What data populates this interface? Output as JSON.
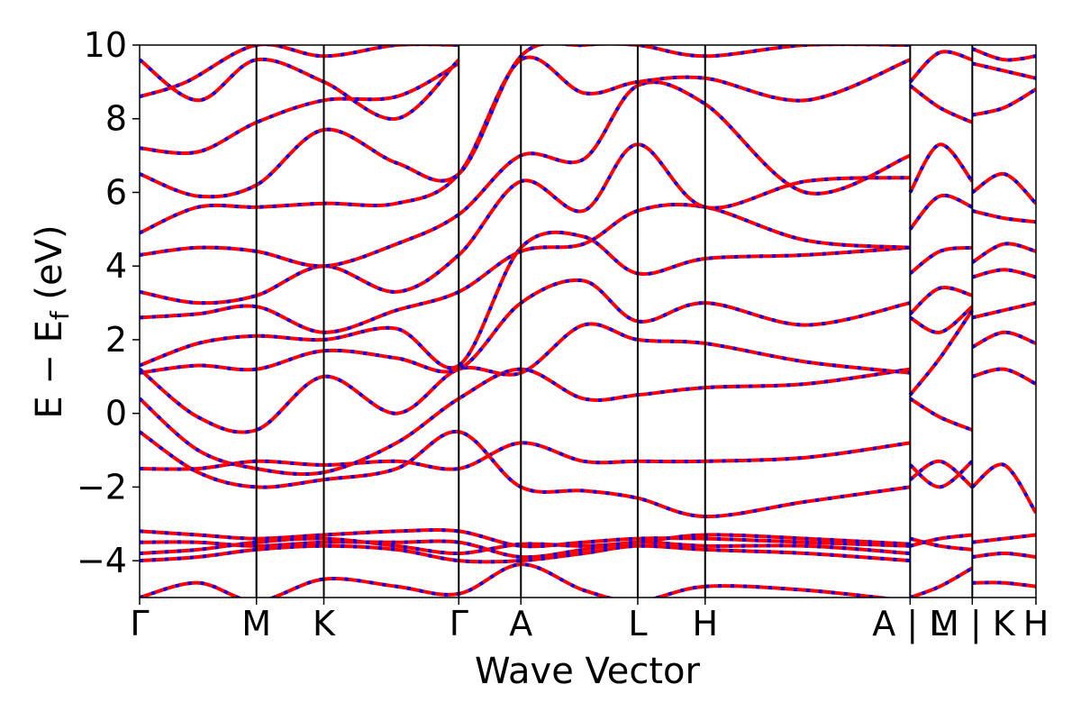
{
  "chart_data": {
    "type": "line",
    "title": "",
    "xlabel": "Wave Vector",
    "ylabel_main": "E − E",
    "ylabel_sub": "f",
    "ylabel_unit": " (eV)",
    "ylim": [
      -5,
      10
    ],
    "yticks": [
      -4,
      -2,
      0,
      2,
      4,
      6,
      8,
      10
    ],
    "ytick_labels": [
      "−4",
      "−2",
      "0",
      "2",
      "4",
      "6",
      "8",
      "10"
    ],
    "kpoint_labels": [
      "Γ",
      "M",
      "K",
      "Γ",
      "A",
      "L",
      "H",
      "A | L",
      "M | K",
      "H"
    ],
    "kpoint_positions": [
      0,
      1.0,
      1.577,
      2.732,
      3.264,
      4.264,
      4.841,
      6.596,
      7.128,
      7.673
    ],
    "grid": false,
    "legend": "none",
    "series_colors": {
      "solid": "#ff0000",
      "dashed": "#0000ff"
    },
    "bands": [
      {
        "x": [
          0,
          0.5,
          1.0,
          1.577,
          2.2,
          2.732,
          3.264,
          3.8,
          4.264,
          4.841,
          5.7,
          6.596
        ],
        "y": [
          -4.0,
          -3.9,
          -3.7,
          -3.6,
          -3.7,
          -4.0,
          -4.0,
          -3.8,
          -3.6,
          -3.7,
          -3.8,
          -4.0
        ]
      },
      {
        "x": [
          0,
          0.5,
          1.0,
          1.577,
          2.2,
          2.732,
          3.264,
          3.8,
          4.264,
          4.841,
          5.7,
          6.596
        ],
        "y": [
          -3.2,
          -3.3,
          -3.4,
          -3.3,
          -3.2,
          -3.2,
          -3.6,
          -3.5,
          -3.4,
          -3.4,
          -3.5,
          -3.6
        ]
      },
      {
        "x": [
          0,
          0.5,
          1.0,
          1.577,
          2.2,
          2.732,
          3.264,
          3.8,
          4.264,
          4.841,
          5.7,
          6.596
        ],
        "y": [
          -3.5,
          -3.5,
          -3.6,
          -3.5,
          -3.5,
          -3.5,
          -3.9,
          -3.7,
          -3.5,
          -3.6,
          -3.6,
          -3.8
        ]
      },
      {
        "x": [
          0,
          0.5,
          1.0,
          1.577,
          2.2,
          2.732,
          3.264,
          3.8,
          4.264,
          4.841,
          5.7,
          6.596
        ],
        "y": [
          -3.8,
          -3.7,
          -3.5,
          -3.4,
          -3.6,
          -3.8,
          -3.55,
          -3.6,
          -3.5,
          -3.3,
          -3.4,
          -3.55
        ]
      },
      {
        "x": [
          0,
          0.5,
          1.0,
          1.577,
          2.2,
          2.732,
          3.264,
          3.8,
          4.264,
          4.841,
          5.7,
          6.596
        ],
        "y": [
          -1.5,
          -1.5,
          -1.3,
          -1.4,
          -1.3,
          -1.5,
          -0.8,
          -1.3,
          -1.3,
          -1.3,
          -1.2,
          -0.8
        ]
      },
      {
        "x": [
          0,
          0.5,
          1.0,
          1.577,
          2.2,
          2.732,
          3.264,
          3.8,
          4.264,
          4.841,
          5.7,
          6.596
        ],
        "y": [
          -0.5,
          -1.6,
          -2.0,
          -1.8,
          -1.5,
          -0.5,
          -2.0,
          -2.1,
          -2.3,
          -2.8,
          -2.4,
          -2.0
        ]
      },
      {
        "x": [
          0,
          0.5,
          1.0,
          1.577,
          2.2,
          2.732,
          3.264,
          3.8,
          4.264,
          4.841,
          5.7,
          6.596
        ],
        "y": [
          0.4,
          -1.0,
          -1.5,
          -1.6,
          -0.8,
          0.4,
          1.2,
          0.4,
          0.5,
          0.7,
          0.8,
          1.2
        ]
      },
      {
        "x": [
          0,
          0.5,
          1.0,
          1.577,
          2.2,
          2.732,
          3.264,
          3.8,
          4.264,
          4.841,
          5.7,
          6.596
        ],
        "y": [
          1.2,
          -0.1,
          -0.45,
          1.0,
          0.0,
          1.2,
          1.1,
          2.4,
          2.0,
          1.9,
          1.4,
          1.1
        ]
      },
      {
        "x": [
          0,
          0.5,
          1.0,
          1.577,
          2.2,
          2.732,
          3.264,
          3.8,
          4.264,
          4.841,
          5.7,
          6.596
        ],
        "y": [
          1.1,
          1.3,
          1.2,
          1.7,
          1.5,
          1.2,
          3.0,
          3.6,
          2.5,
          3.0,
          2.4,
          3.0
        ]
      },
      {
        "x": [
          0,
          0.5,
          1.0,
          1.577,
          2.2,
          2.732,
          3.264,
          3.8,
          4.264,
          4.841,
          5.7,
          6.596
        ],
        "y": [
          1.3,
          1.9,
          2.1,
          2.0,
          2.3,
          1.3,
          4.5,
          4.8,
          3.8,
          4.2,
          4.3,
          4.5
        ]
      },
      {
        "x": [
          0,
          0.5,
          1.0,
          1.577,
          2.2,
          2.732,
          3.264,
          3.8,
          4.264,
          4.841,
          5.7,
          6.596
        ],
        "y": [
          2.6,
          2.7,
          2.9,
          2.2,
          2.8,
          3.3,
          4.4,
          4.6,
          5.5,
          5.6,
          4.7,
          4.5
        ]
      },
      {
        "x": [
          0,
          0.5,
          1.0,
          1.577,
          2.2,
          2.732,
          3.264,
          3.8,
          4.264,
          4.841,
          5.7,
          6.596
        ],
        "y": [
          3.3,
          3.0,
          3.2,
          4.0,
          3.3,
          4.3,
          6.3,
          5.5,
          7.3,
          5.6,
          6.3,
          6.4
        ]
      },
      {
        "x": [
          0,
          0.5,
          1.0,
          1.577,
          2.2,
          2.732,
          3.264,
          3.8,
          4.264,
          4.841,
          5.7,
          6.596
        ],
        "y": [
          4.3,
          4.5,
          4.4,
          4.0,
          4.6,
          5.4,
          7.0,
          6.9,
          8.9,
          8.4,
          6.0,
          7.0
        ]
      },
      {
        "x": [
          0,
          0.5,
          1.0,
          1.577,
          2.2,
          2.732,
          3.264,
          3.8,
          4.264,
          4.841,
          5.7,
          6.596
        ],
        "y": [
          4.9,
          5.6,
          5.6,
          5.7,
          5.7,
          6.5,
          9.6,
          8.7,
          9.0,
          9.1,
          8.5,
          9.6
        ]
      },
      {
        "x": [
          0,
          0.5,
          1.0,
          1.577,
          2.2,
          2.732,
          3.264,
          3.8,
          4.264,
          4.841,
          5.7,
          6.596
        ],
        "y": [
          6.5,
          5.9,
          6.2,
          7.7,
          6.8,
          6.5,
          9.7,
          10.0,
          10.0,
          9.7,
          10.0,
          10.0
        ]
      },
      {
        "x": [
          0,
          0.5,
          1.0,
          1.577,
          2.2,
          2.732
        ],
        "y": [
          7.2,
          7.1,
          7.9,
          8.5,
          8.6,
          9.5
        ]
      },
      {
        "x": [
          0,
          0.5,
          1.0,
          1.577,
          2.2,
          2.732
        ],
        "y": [
          9.6,
          8.5,
          9.6,
          9.0,
          8.0,
          9.6
        ]
      },
      {
        "x": [
          0,
          0.4,
          1.0,
          1.577,
          2.2,
          2.732
        ],
        "y": [
          8.6,
          9.0,
          10.0,
          9.7,
          10.0,
          10.0
        ]
      },
      {
        "x": [
          0,
          0.5,
          1.0,
          1.577,
          2.2,
          2.732,
          3.264,
          3.8,
          4.264,
          4.841,
          5.7,
          6.596
        ],
        "y": [
          -5.0,
          -4.6,
          -5.1,
          -4.5,
          -4.7,
          -4.9,
          -4.1,
          -4.8,
          -5.1,
          -4.7,
          -4.8,
          -5.1
        ]
      },
      {
        "x": [
          6.596,
          6.85,
          7.128
        ],
        "y": [
          -3.6,
          -3.4,
          -3.3
        ]
      },
      {
        "x": [
          6.596,
          6.85,
          7.128
        ],
        "y": [
          -3.4,
          -3.6,
          -3.7
        ]
      },
      {
        "x": [
          6.596,
          6.85,
          7.128
        ],
        "y": [
          -5.0,
          -4.7,
          -4.2
        ]
      },
      {
        "x": [
          6.596,
          6.85,
          7.128
        ],
        "y": [
          -1.8,
          -1.3,
          -2.0
        ]
      },
      {
        "x": [
          6.596,
          6.85,
          7.128
        ],
        "y": [
          -1.4,
          -2.0,
          -1.3
        ]
      },
      {
        "x": [
          6.596,
          6.85,
          7.128
        ],
        "y": [
          0.4,
          -0.1,
          -0.45
        ]
      },
      {
        "x": [
          6.596,
          6.85,
          7.128
        ],
        "y": [
          0.5,
          1.5,
          2.8
        ]
      },
      {
        "x": [
          6.596,
          6.85,
          7.128
        ],
        "y": [
          2.6,
          2.2,
          2.9
        ]
      },
      {
        "x": [
          6.596,
          6.85,
          7.128
        ],
        "y": [
          2.7,
          3.4,
          3.2
        ]
      },
      {
        "x": [
          6.596,
          6.85,
          7.128
        ],
        "y": [
          3.8,
          4.4,
          4.5
        ]
      },
      {
        "x": [
          6.596,
          6.85,
          7.128
        ],
        "y": [
          5.0,
          5.9,
          5.6
        ]
      },
      {
        "x": [
          6.596,
          6.85,
          7.128
        ],
        "y": [
          6.0,
          7.3,
          6.3
        ]
      },
      {
        "x": [
          6.596,
          6.85,
          7.128
        ],
        "y": [
          8.9,
          8.3,
          7.9
        ]
      },
      {
        "x": [
          6.596,
          6.85,
          7.128
        ],
        "y": [
          9.0,
          9.8,
          9.6
        ]
      },
      {
        "x": [
          7.128,
          7.4,
          7.673
        ],
        "y": [
          -3.5,
          -3.4,
          -3.3
        ]
      },
      {
        "x": [
          7.128,
          7.4,
          7.673
        ],
        "y": [
          -3.9,
          -3.8,
          -3.9
        ]
      },
      {
        "x": [
          7.128,
          7.4,
          7.673
        ],
        "y": [
          -4.6,
          -4.6,
          -4.7
        ]
      },
      {
        "x": [
          7.128,
          7.4,
          7.673
        ],
        "y": [
          -2.0,
          -1.4,
          -2.7
        ]
      },
      {
        "x": [
          7.128,
          7.4,
          7.673
        ],
        "y": [
          1.0,
          1.2,
          0.8
        ]
      },
      {
        "x": [
          7.128,
          7.4,
          7.673
        ],
        "y": [
          1.8,
          2.2,
          1.9
        ]
      },
      {
        "x": [
          7.128,
          7.4,
          7.673
        ],
        "y": [
          2.6,
          2.8,
          3.0
        ]
      },
      {
        "x": [
          7.128,
          7.4,
          7.673
        ],
        "y": [
          3.7,
          3.9,
          3.7
        ]
      },
      {
        "x": [
          7.128,
          7.4,
          7.673
        ],
        "y": [
          4.1,
          4.6,
          4.4
        ]
      },
      {
        "x": [
          7.128,
          7.4,
          7.673
        ],
        "y": [
          5.5,
          5.3,
          5.2
        ]
      },
      {
        "x": [
          7.128,
          7.4,
          7.673
        ],
        "y": [
          6.0,
          6.5,
          5.7
        ]
      },
      {
        "x": [
          7.128,
          7.4,
          7.673
        ],
        "y": [
          8.1,
          8.3,
          8.8
        ]
      },
      {
        "x": [
          7.128,
          7.4,
          7.673
        ],
        "y": [
          9.5,
          9.3,
          9.1
        ]
      },
      {
        "x": [
          7.128,
          7.4,
          7.673
        ],
        "y": [
          9.9,
          9.6,
          9.7
        ]
      }
    ]
  }
}
